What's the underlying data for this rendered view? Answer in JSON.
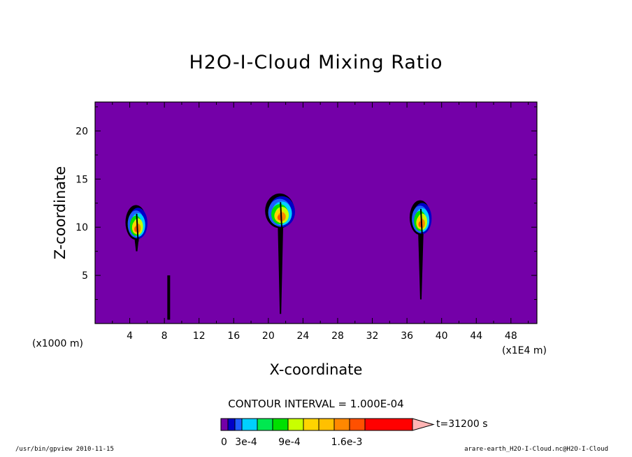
{
  "chart_data": {
    "type": "heatmap",
    "title": "H2O-I-Cloud Mixing Ratio",
    "xlabel": "X-coordinate",
    "ylabel": "Z-coordinate",
    "x_unit_left": "(x1000 m)",
    "x_unit_right": "(x1E4 m)",
    "xlim": [
      0,
      51
    ],
    "ylim": [
      0,
      23
    ],
    "xticks": [
      4,
      8,
      12,
      16,
      20,
      24,
      28,
      32,
      36,
      40,
      44,
      48
    ],
    "yticks": [
      5,
      10,
      15,
      20
    ],
    "background_level_color": "#7400a8",
    "contour_interval_text": "CONTOUR INTERVAL = 1.000E-04",
    "time_text": "t=31200 s",
    "colorbar": {
      "colors": [
        "#7400a8",
        "#0000c8",
        "#1e5cff",
        "#00d0ff",
        "#00e850",
        "#00e000",
        "#c8ff00",
        "#ffd400",
        "#ffc000",
        "#ff8800",
        "#ff5000",
        "#ff0000",
        "#ff6e6e",
        "#ffb4b4"
      ],
      "labels": [
        "0",
        "3e-4",
        "9e-4",
        "1.6e-3"
      ]
    },
    "clouds": [
      {
        "x": 4.8,
        "z_base": 7.5,
        "z_top": 12.3,
        "peak": "1.1e-3"
      },
      {
        "x": 21.4,
        "z_base": 1.0,
        "z_top": 13.5,
        "peak": "1.3e-3"
      },
      {
        "x": 37.6,
        "z_base": 2.5,
        "z_top": 12.8,
        "peak": "1.4e-3"
      }
    ]
  },
  "footer_left": "/usr/bin/gpview   2010-11-15",
  "footer_right": "arare-earth_H2O-I-Cloud.nc@H2O-I-Cloud"
}
